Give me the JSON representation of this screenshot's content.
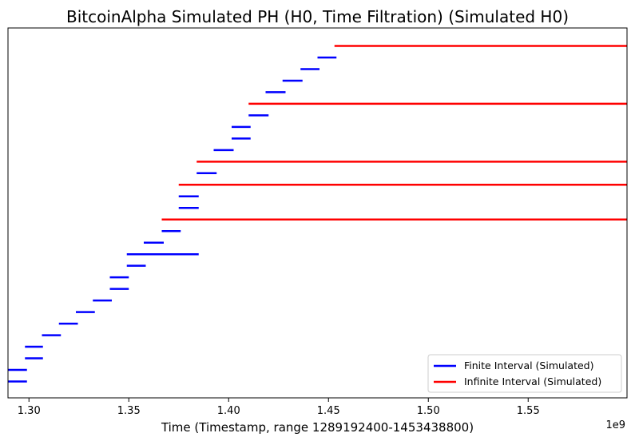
{
  "chart_data": {
    "type": "barcode",
    "title": "BitcoinAlpha Simulated PH (H0, Time Filtration) (Simulated H0)",
    "xlabel": "Time (Timestamp, range 1289192400-1453438800)",
    "ylabel": "",
    "x_offset_label": "1e9",
    "xlim": [
      1.2895,
      1.5995
    ],
    "x_ticks": [
      {
        "value": 1.3,
        "label": "1.30"
      },
      {
        "value": 1.35,
        "label": "1.35"
      },
      {
        "value": 1.4,
        "label": "1.40"
      },
      {
        "value": 1.45,
        "label": "1.45"
      },
      {
        "value": 1.5,
        "label": "1.50"
      },
      {
        "value": 1.55,
        "label": "1.55"
      }
    ],
    "grid": false,
    "legend_position": "lower-right",
    "colors": {
      "finite": "#0000ff",
      "infinite": "#ff0000"
    },
    "series": [
      {
        "name": "Finite Interval (Simulated)",
        "color": "#0000ff",
        "intervals": [
          [
            1.2892,
            1.299
          ],
          [
            1.2892,
            1.299
          ],
          [
            1.298,
            1.307
          ],
          [
            1.298,
            1.307
          ],
          [
            1.3065,
            1.316
          ],
          [
            1.315,
            1.3245
          ],
          [
            1.3235,
            1.333
          ],
          [
            1.332,
            1.3415
          ],
          [
            1.3405,
            1.35
          ],
          [
            1.3405,
            1.35
          ],
          [
            1.349,
            1.3585
          ],
          [
            1.349,
            1.385
          ],
          [
            1.3575,
            1.3675
          ],
          [
            1.3665,
            1.376
          ],
          [
            1.375,
            1.385
          ],
          [
            1.375,
            1.385
          ],
          [
            1.384,
            1.394
          ],
          [
            1.3925,
            1.4025
          ],
          [
            1.4015,
            1.411
          ],
          [
            1.4015,
            1.411
          ],
          [
            1.41,
            1.42
          ],
          [
            1.4185,
            1.4285
          ],
          [
            1.427,
            1.437
          ],
          [
            1.436,
            1.4455
          ],
          [
            1.4445,
            1.454
          ]
        ]
      },
      {
        "name": "Infinite Interval (Simulated)",
        "color": "#ff0000",
        "intervals": [
          {
            "birth": 1.3665,
            "index": 14
          },
          {
            "birth": 1.375,
            "index": 17
          },
          {
            "birth": 1.384,
            "index": 19
          },
          {
            "birth": 1.41,
            "index": 24
          },
          {
            "birth": 1.453,
            "index": 29
          }
        ]
      }
    ],
    "rows": [
      {
        "series": 0,
        "i": 0
      },
      {
        "series": 0,
        "i": 1
      },
      {
        "series": 0,
        "i": 2
      },
      {
        "series": 0,
        "i": 3
      },
      {
        "series": 0,
        "i": 4
      },
      {
        "series": 0,
        "i": 5
      },
      {
        "series": 0,
        "i": 6
      },
      {
        "series": 0,
        "i": 7
      },
      {
        "series": 0,
        "i": 8
      },
      {
        "series": 0,
        "i": 9
      },
      {
        "series": 0,
        "i": 10
      },
      {
        "series": 0,
        "i": 11
      },
      {
        "series": 0,
        "i": 12
      },
      {
        "series": 0,
        "i": 13
      },
      {
        "series": 1,
        "i": 0
      },
      {
        "series": 0,
        "i": 14
      },
      {
        "series": 0,
        "i": 15
      },
      {
        "series": 1,
        "i": 1
      },
      {
        "series": 0,
        "i": 16
      },
      {
        "series": 1,
        "i": 2
      },
      {
        "series": 0,
        "i": 17
      },
      {
        "series": 0,
        "i": 18
      },
      {
        "series": 0,
        "i": 19
      },
      {
        "series": 0,
        "i": 20
      },
      {
        "series": 1,
        "i": 3
      },
      {
        "series": 0,
        "i": 21
      },
      {
        "series": 0,
        "i": 22
      },
      {
        "series": 0,
        "i": 23
      },
      {
        "series": 0,
        "i": 24
      },
      {
        "series": 1,
        "i": 4
      }
    ]
  }
}
